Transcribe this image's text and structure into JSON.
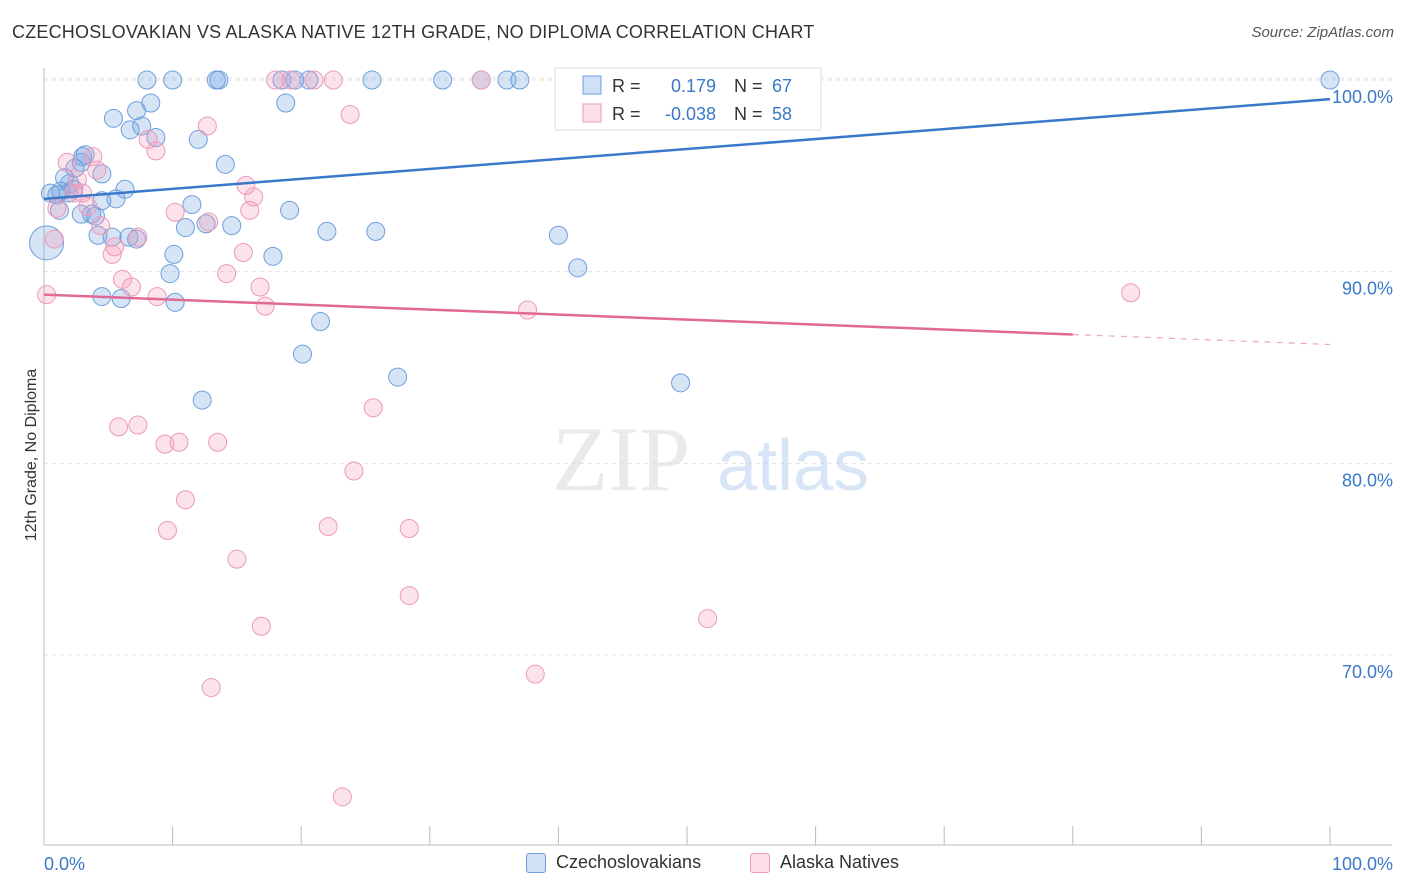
{
  "title": "CZECHOSLOVAKIAN VS ALASKA NATIVE 12TH GRADE, NO DIPLOMA CORRELATION CHART",
  "source": "Source: ZipAtlas.com",
  "watermark": {
    "zip": "ZIP",
    "atlas": "atlas"
  },
  "colors": {
    "blue": "#3a78c9",
    "blue_fill": "rgba(120,165,225,0.30)",
    "blue_stroke": "#6c9fdc",
    "pink": "#e06a95",
    "pink_fill": "rgba(245,160,190,0.30)",
    "pink_stroke": "#ec9ab8",
    "tick_label": "#3a78c9",
    "grid": "#e3e3e3"
  },
  "stats": {
    "r_label": "R =",
    "n_label": "N =",
    "blue_r": "0.179",
    "blue_n": "67",
    "pink_r": "-0.038",
    "pink_n": "58"
  },
  "chart_data": {
    "type": "scatter",
    "xlabel": "",
    "ylabel": "12th Grade, No Diploma",
    "xlim": [
      0,
      100
    ],
    "ylim": [
      60,
      102
    ],
    "x_tick_labels": [
      "0.0%",
      "100.0%"
    ],
    "y_ticks": [
      70,
      80,
      90,
      100
    ],
    "y_tick_labels": [
      "70.0%",
      "80.0%",
      "90.0%",
      "100.0%"
    ],
    "grid": true,
    "legend_position": "bottom-center",
    "series": [
      {
        "name": "Czechoslovakians",
        "color": "#3a78c9",
        "trend": {
          "x0": 0,
          "y0": 93.8,
          "x1": 100,
          "y1": 99.0,
          "dashed_from": null
        },
        "points": [
          [
            0.2,
            91.5
          ],
          [
            0.5,
            94.1
          ],
          [
            1.0,
            94.0
          ],
          [
            1.2,
            93.2
          ],
          [
            1.6,
            94.9
          ],
          [
            1.9,
            94.1
          ],
          [
            2.4,
            95.4
          ],
          [
            2.9,
            95.7
          ],
          [
            3.2,
            96.1
          ],
          [
            2.9,
            93.0
          ],
          [
            3.7,
            93.0
          ],
          [
            4.0,
            92.9
          ],
          [
            4.5,
            93.7
          ],
          [
            4.5,
            95.1
          ],
          [
            4.2,
            91.9
          ],
          [
            5.3,
            91.8
          ],
          [
            5.6,
            93.8
          ],
          [
            6.3,
            94.3
          ],
          [
            6.6,
            91.8
          ],
          [
            5.4,
            98.0
          ],
          [
            6.7,
            97.4
          ],
          [
            7.2,
            98.4
          ],
          [
            7.6,
            97.6
          ],
          [
            8.3,
            98.8
          ],
          [
            8.7,
            97.0
          ],
          [
            9.8,
            89.9
          ],
          [
            8.0,
            100
          ],
          [
            10.0,
            100
          ],
          [
            10.2,
            88.4
          ],
          [
            11.0,
            92.3
          ],
          [
            11.5,
            93.5
          ],
          [
            12.0,
            96.9
          ],
          [
            12.3,
            83.3
          ],
          [
            12.6,
            92.5
          ],
          [
            13.4,
            100
          ],
          [
            13.6,
            100
          ],
          [
            14.1,
            95.6
          ],
          [
            14.6,
            92.4
          ],
          [
            18.5,
            100
          ],
          [
            19.5,
            100
          ],
          [
            17.8,
            90.8
          ],
          [
            18.8,
            98.8
          ],
          [
            19.1,
            93.2
          ],
          [
            20.1,
            85.7
          ],
          [
            20.6,
            100
          ],
          [
            21.5,
            87.4
          ],
          [
            22.0,
            92.1
          ],
          [
            25.5,
            100
          ],
          [
            27.5,
            84.5
          ],
          [
            25.8,
            92.1
          ],
          [
            31.0,
            100
          ],
          [
            34.0,
            100
          ],
          [
            36.0,
            100
          ],
          [
            37.0,
            100
          ],
          [
            40.5,
            100
          ],
          [
            40.0,
            91.9
          ],
          [
            41.5,
            90.2
          ],
          [
            49.5,
            84.2
          ],
          [
            4.5,
            88.7
          ],
          [
            6.0,
            88.6
          ],
          [
            7.2,
            91.7
          ],
          [
            10.1,
            90.9
          ],
          [
            2.0,
            94.6
          ],
          [
            3.0,
            96.0
          ],
          [
            1.3,
            94.2
          ],
          [
            100,
            100
          ],
          [
            2.3,
            94.3
          ]
        ]
      },
      {
        "name": "Alaska Natives",
        "color": "#e06a95",
        "trend": {
          "x0": 0,
          "y0": 88.8,
          "x1": 100,
          "y1": 86.2,
          "dashed_from": 80
        },
        "points": [
          [
            0.2,
            88.8
          ],
          [
            0.8,
            91.7
          ],
          [
            1.0,
            93.3
          ],
          [
            1.8,
            95.7
          ],
          [
            2.3,
            94.1
          ],
          [
            2.6,
            94.8
          ],
          [
            3.0,
            94.1
          ],
          [
            3.4,
            93.4
          ],
          [
            3.8,
            96.0
          ],
          [
            4.1,
            95.3
          ],
          [
            4.4,
            92.4
          ],
          [
            5.3,
            90.9
          ],
          [
            5.5,
            91.3
          ],
          [
            6.1,
            89.6
          ],
          [
            6.8,
            89.2
          ],
          [
            5.8,
            81.9
          ],
          [
            7.3,
            91.8
          ],
          [
            7.3,
            82.0
          ],
          [
            8.7,
            96.3
          ],
          [
            8.1,
            96.9
          ],
          [
            8.8,
            88.7
          ],
          [
            9.6,
            76.5
          ],
          [
            9.4,
            81.0
          ],
          [
            10.2,
            93.1
          ],
          [
            10.5,
            81.1
          ],
          [
            11.0,
            78.1
          ],
          [
            12.8,
            92.6
          ],
          [
            12.7,
            97.6
          ],
          [
            13.0,
            68.3
          ],
          [
            13.5,
            81.1
          ],
          [
            14.2,
            89.9
          ],
          [
            15.0,
            75.0
          ],
          [
            15.7,
            94.5
          ],
          [
            16.0,
            93.2
          ],
          [
            16.3,
            93.9
          ],
          [
            16.8,
            89.2
          ],
          [
            16.9,
            71.5
          ],
          [
            17.2,
            88.2
          ],
          [
            18.0,
            100
          ],
          [
            19.2,
            100
          ],
          [
            22.1,
            76.7
          ],
          [
            22.5,
            100
          ],
          [
            23.2,
            62.6
          ],
          [
            23.8,
            98.2
          ],
          [
            24.1,
            79.6
          ],
          [
            25.6,
            82.9
          ],
          [
            28.4,
            73.1
          ],
          [
            28.4,
            76.6
          ],
          [
            34.0,
            100
          ],
          [
            37.6,
            88.0
          ],
          [
            38.2,
            69.0
          ],
          [
            43.4,
            100
          ],
          [
            44.0,
            100
          ],
          [
            45.0,
            100
          ],
          [
            51.6,
            71.9
          ],
          [
            84.5,
            88.9
          ],
          [
            21.0,
            100
          ],
          [
            15.5,
            91.0
          ]
        ]
      }
    ]
  }
}
